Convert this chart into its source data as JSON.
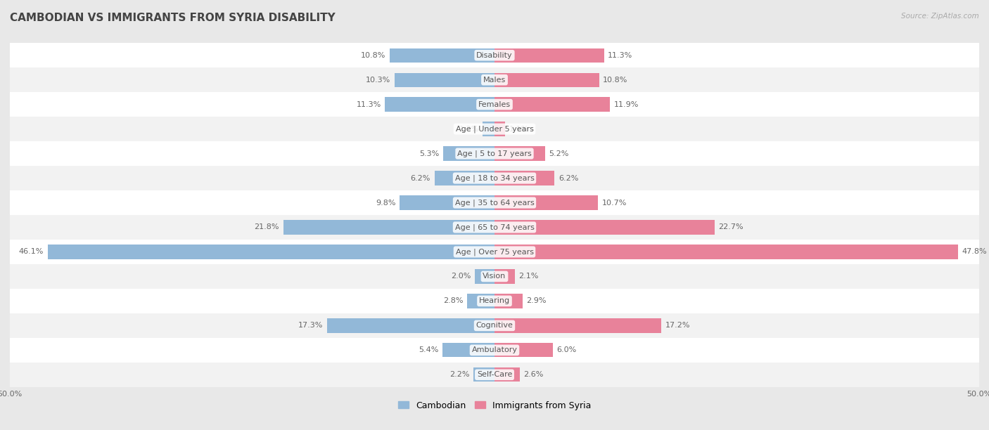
{
  "title": "CAMBODIAN VS IMMIGRANTS FROM SYRIA DISABILITY",
  "source": "Source: ZipAtlas.com",
  "categories": [
    "Disability",
    "Males",
    "Females",
    "Age | Under 5 years",
    "Age | 5 to 17 years",
    "Age | 18 to 34 years",
    "Age | 35 to 64 years",
    "Age | 65 to 74 years",
    "Age | Over 75 years",
    "Vision",
    "Hearing",
    "Cognitive",
    "Ambulatory",
    "Self-Care"
  ],
  "cambodian": [
    10.8,
    10.3,
    11.3,
    1.2,
    5.3,
    6.2,
    9.8,
    21.8,
    46.1,
    2.0,
    2.8,
    17.3,
    5.4,
    2.2
  ],
  "syria": [
    11.3,
    10.8,
    11.9,
    1.1,
    5.2,
    6.2,
    10.7,
    22.7,
    47.8,
    2.1,
    2.9,
    17.2,
    6.0,
    2.6
  ],
  "blue_color": "#92b8d8",
  "pink_color": "#e8829a",
  "bg_outer": "#e8e8e8",
  "row_color_odd": "#f2f2f2",
  "row_color_even": "#ffffff",
  "axis_limit": 50.0,
  "legend_cambodian": "Cambodian",
  "legend_syria": "Immigrants from Syria",
  "title_fontsize": 11,
  "label_fontsize": 8,
  "value_fontsize": 8,
  "legend_fontsize": 9
}
